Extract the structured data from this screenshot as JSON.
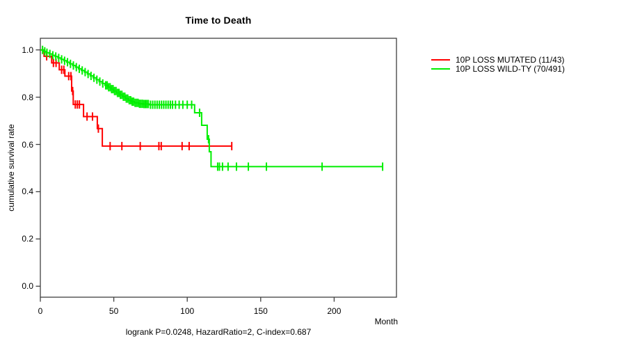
{
  "chart_data": {
    "type": "line",
    "subtype": "kaplan-meier-step",
    "title": "Time to Death",
    "xlabel": "Month",
    "ylabel": "cumulative survival rate",
    "xlim": [
      0,
      243
    ],
    "ylim": [
      0,
      1.0
    ],
    "xticks": [
      0,
      50,
      100,
      150,
      200
    ],
    "yticks": [
      0.0,
      0.2,
      0.4,
      0.6,
      0.8,
      1.0
    ],
    "ytick_labels": [
      "0.0",
      "0.2",
      "0.4",
      "0.6",
      "0.8",
      "1.0"
    ],
    "grid": false,
    "legend_position": "right-outside",
    "footnote": "logrank P=0.0248, HazardRatio=2, C-index=0.687",
    "series": [
      {
        "name": "10P LOSS MUTATED (11/43)",
        "color": "#ff0000",
        "end_month": 130.3,
        "steps": [
          [
            0,
            1.0
          ],
          [
            2.5,
            0.973
          ],
          [
            7.7,
            0.945
          ],
          [
            12.9,
            0.916
          ],
          [
            16.7,
            0.889
          ],
          [
            21.3,
            0.826
          ],
          [
            22.4,
            0.769
          ],
          [
            29.4,
            0.718
          ],
          [
            38.8,
            0.667
          ],
          [
            42.2,
            0.593
          ]
        ],
        "censor_months": [
          4.3,
          8.9,
          10.7,
          14.5,
          16,
          19.3,
          20.8,
          22,
          23.8,
          25.2,
          26.6,
          31.8,
          35.5,
          39.5,
          47.5,
          55.5,
          68,
          80.7,
          82.3,
          96.5,
          101.3,
          130.3
        ]
      },
      {
        "name": "10P LOSS WILD-TY (70/491)",
        "color": "#00ee00",
        "end_month": 233,
        "steps": [
          [
            0,
            1.0
          ],
          [
            2,
            0.994
          ],
          [
            4,
            0.988
          ],
          [
            6,
            0.983
          ],
          [
            8,
            0.977
          ],
          [
            10,
            0.972
          ],
          [
            12,
            0.966
          ],
          [
            14,
            0.96
          ],
          [
            16,
            0.954
          ],
          [
            18,
            0.948
          ],
          [
            20,
            0.941
          ],
          [
            22,
            0.934
          ],
          [
            24,
            0.927
          ],
          [
            26,
            0.92
          ],
          [
            28,
            0.913
          ],
          [
            30,
            0.906
          ],
          [
            32,
            0.898
          ],
          [
            34,
            0.89
          ],
          [
            36,
            0.882
          ],
          [
            38,
            0.874
          ],
          [
            40,
            0.866
          ],
          [
            42,
            0.858
          ],
          [
            44,
            0.85
          ],
          [
            46,
            0.842
          ],
          [
            48,
            0.834
          ],
          [
            50,
            0.826
          ],
          [
            52,
            0.818
          ],
          [
            54,
            0.81
          ],
          [
            56,
            0.802
          ],
          [
            58,
            0.794
          ],
          [
            60,
            0.787
          ],
          [
            62,
            0.781
          ],
          [
            64,
            0.776
          ],
          [
            67,
            0.772
          ],
          [
            70,
            0.771
          ],
          [
            74,
            0.768
          ],
          [
            105,
            0.734
          ],
          [
            109.8,
            0.681
          ],
          [
            113.6,
            0.622
          ],
          [
            115,
            0.569
          ],
          [
            116.2,
            0.506
          ]
        ],
        "censor_months": [
          1.5,
          3,
          4.5,
          6.5,
          8.5,
          10.5,
          12.5,
          14.5,
          16.5,
          18.5,
          20.5,
          22.5,
          24.5,
          26.5,
          28.5,
          30.5,
          32.5,
          34.5,
          36.5,
          38.5,
          40.5,
          42.5,
          44.5,
          45.5,
          46.5,
          47.5,
          48.5,
          49.5,
          50.5,
          51.5,
          52.5,
          53.5,
          54.5,
          55.5,
          56.5,
          57.5,
          58.5,
          59.5,
          60.5,
          61.5,
          62.5,
          63.5,
          64.5,
          65.5,
          66.5,
          67.5,
          68.5,
          69.5,
          70.5,
          71.5,
          72.5,
          73.5,
          75,
          76.5,
          78,
          79.5,
          81,
          82.5,
          84,
          85.5,
          87,
          88.5,
          90,
          92,
          94.5,
          97,
          100,
          103,
          108.4,
          114.5,
          120.7,
          121.9,
          124,
          127.8,
          133.5,
          141.6,
          153.9,
          191.8,
          233
        ]
      }
    ]
  }
}
